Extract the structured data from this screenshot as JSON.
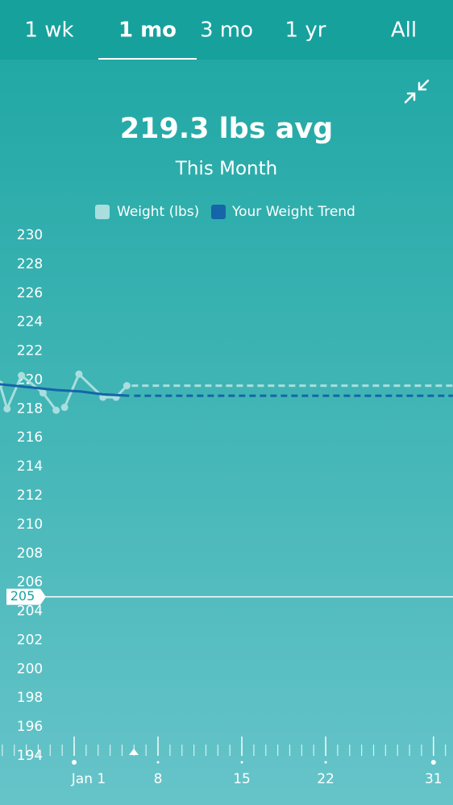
{
  "tabs": {
    "items": [
      "1 wk",
      "1 mo",
      "3 mo",
      "1 yr",
      "All"
    ],
    "selected": 1
  },
  "chart_data": {
    "type": "line",
    "title": "219.3 lbs avg",
    "subtitle": "This Month",
    "x": [
      -5.2,
      -4.6,
      -3.4,
      -1.6,
      -0.5,
      -0.2,
      0.2,
      1.4,
      3.4,
      4.5,
      5.4
    ],
    "series": [
      {
        "name": "Weight (lbs)",
        "color": "#a9dede",
        "x": [
          -5.2,
          -4.6,
          -3.4,
          -1.6,
          -0.5,
          -0.2,
          0.2,
          1.4,
          3.4,
          4.5,
          5.4
        ],
        "values": [
          219.7,
          218.0,
          220.3,
          219.1,
          217.9,
          null,
          218.1,
          220.4,
          218.8,
          218.8,
          219.6
        ],
        "markers": true
      },
      {
        "name": "Your Weight Trend",
        "color": "#1565a8",
        "x": [
          -5.2,
          -0.5,
          1.5,
          3.4,
          5.6
        ],
        "values": [
          219.7,
          219.3,
          219.2,
          219.0,
          218.9
        ],
        "markers": false
      }
    ],
    "goal": 205,
    "xlim": [
      -5.2,
      32.6
    ],
    "xticks": [
      {
        "value": 1,
        "label": "Jan 1"
      },
      8,
      15,
      22,
      31
    ],
    "ylim": [
      194,
      230
    ],
    "yticks": [
      230,
      228,
      226,
      224,
      222,
      220,
      218,
      216,
      214,
      212,
      210,
      208,
      206,
      204,
      202,
      200,
      198,
      196,
      194
    ]
  }
}
